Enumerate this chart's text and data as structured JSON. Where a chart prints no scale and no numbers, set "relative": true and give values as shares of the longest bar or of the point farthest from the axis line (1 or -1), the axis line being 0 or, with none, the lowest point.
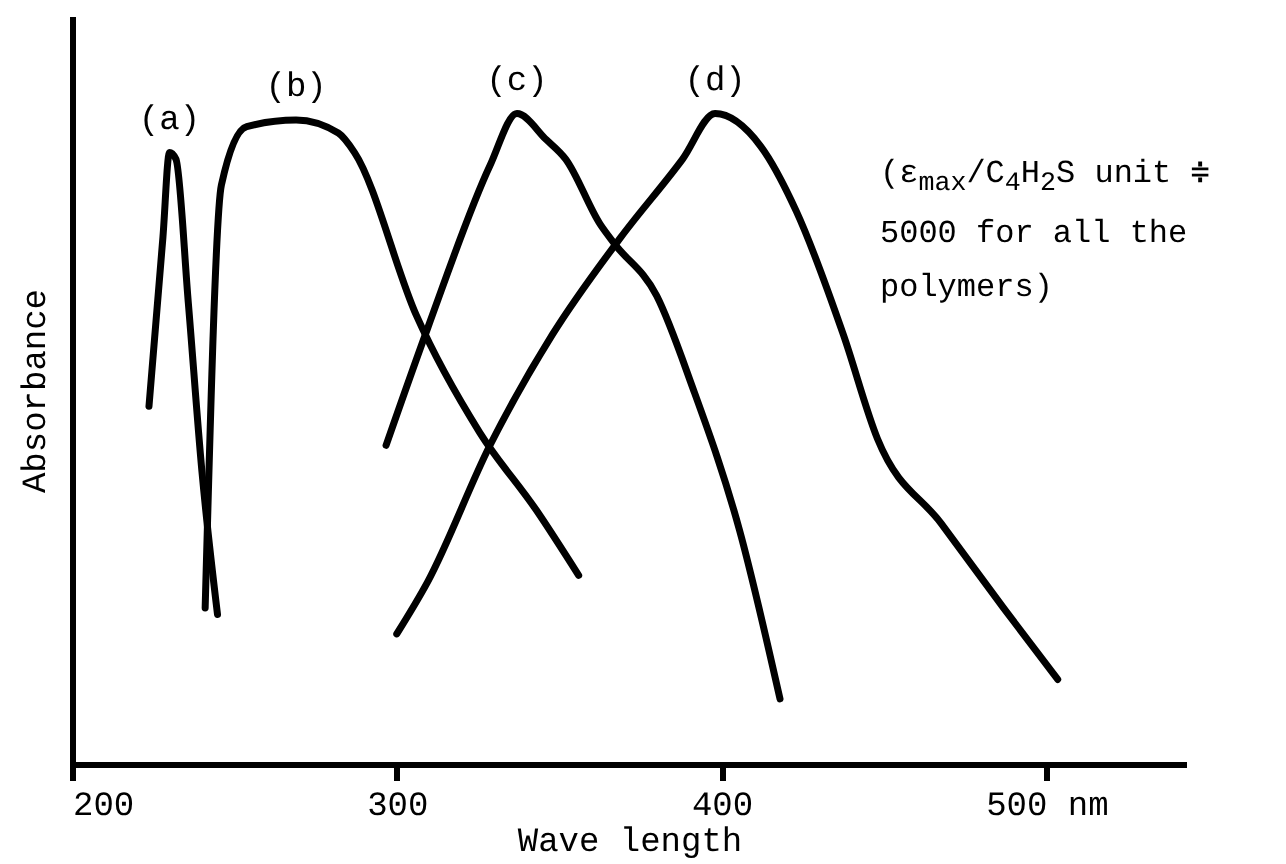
{
  "chart_data": {
    "type": "line",
    "relative": true,
    "xlabel": "Wave length",
    "ylabel": "Absorbance",
    "xlim": [
      200,
      543
    ],
    "xticks": [
      200,
      300,
      400,
      {
        "value": 500,
        "label": "500 nm"
      }
    ],
    "grid": false,
    "legend": false,
    "marker": "none",
    "line_style": "solid",
    "annotations": [
      "(ε$_{max}$/C$_{4}$H$_{2}$S unit ≑ 5000 for all the polymers)"
    ],
    "series": [
      {
        "name": "(a)",
        "color": "#000000",
        "x": [
          223.7,
          228,
          230,
          232,
          235.8,
          240,
          244.8
        ],
        "values": [
          0.55,
          0.81,
          0.94,
          0.93,
          0.71,
          0.45,
          0.23
        ]
      },
      {
        "name": "(b)",
        "color": "#000000",
        "x": [
          241,
          246,
          253.8,
          269,
          282,
          287,
          306,
          325.5,
          343,
          356
        ],
        "values": [
          0.24,
          0.89,
          0.98,
          0.99,
          0.97,
          0.94,
          0.69,
          0.51,
          0.39,
          0.29
        ]
      },
      {
        "name": "(c)",
        "color": "#000000",
        "x": [
          296.7,
          309.5,
          328.7,
          337,
          346,
          352,
          362.6,
          367,
          380,
          391,
          405.5,
          418
        ],
        "values": [
          0.49,
          0.67,
          0.92,
          1.0,
          0.96,
          0.93,
          0.83,
          0.8,
          0.72,
          0.58,
          0.36,
          0.1
        ]
      },
      {
        "name": "(d)",
        "color": "#000000",
        "x": [
          300,
          309.5,
          328.7,
          347.9,
          369,
          388,
          398,
          412,
          423,
          437.5,
          448,
          467.6,
          486.8,
          503.5
        ],
        "values": [
          0.2,
          0.28,
          0.49,
          0.66,
          0.81,
          0.93,
          1.0,
          0.95,
          0.85,
          0.66,
          0.5,
          0.37,
          0.24,
          0.13
        ]
      }
    ]
  }
}
